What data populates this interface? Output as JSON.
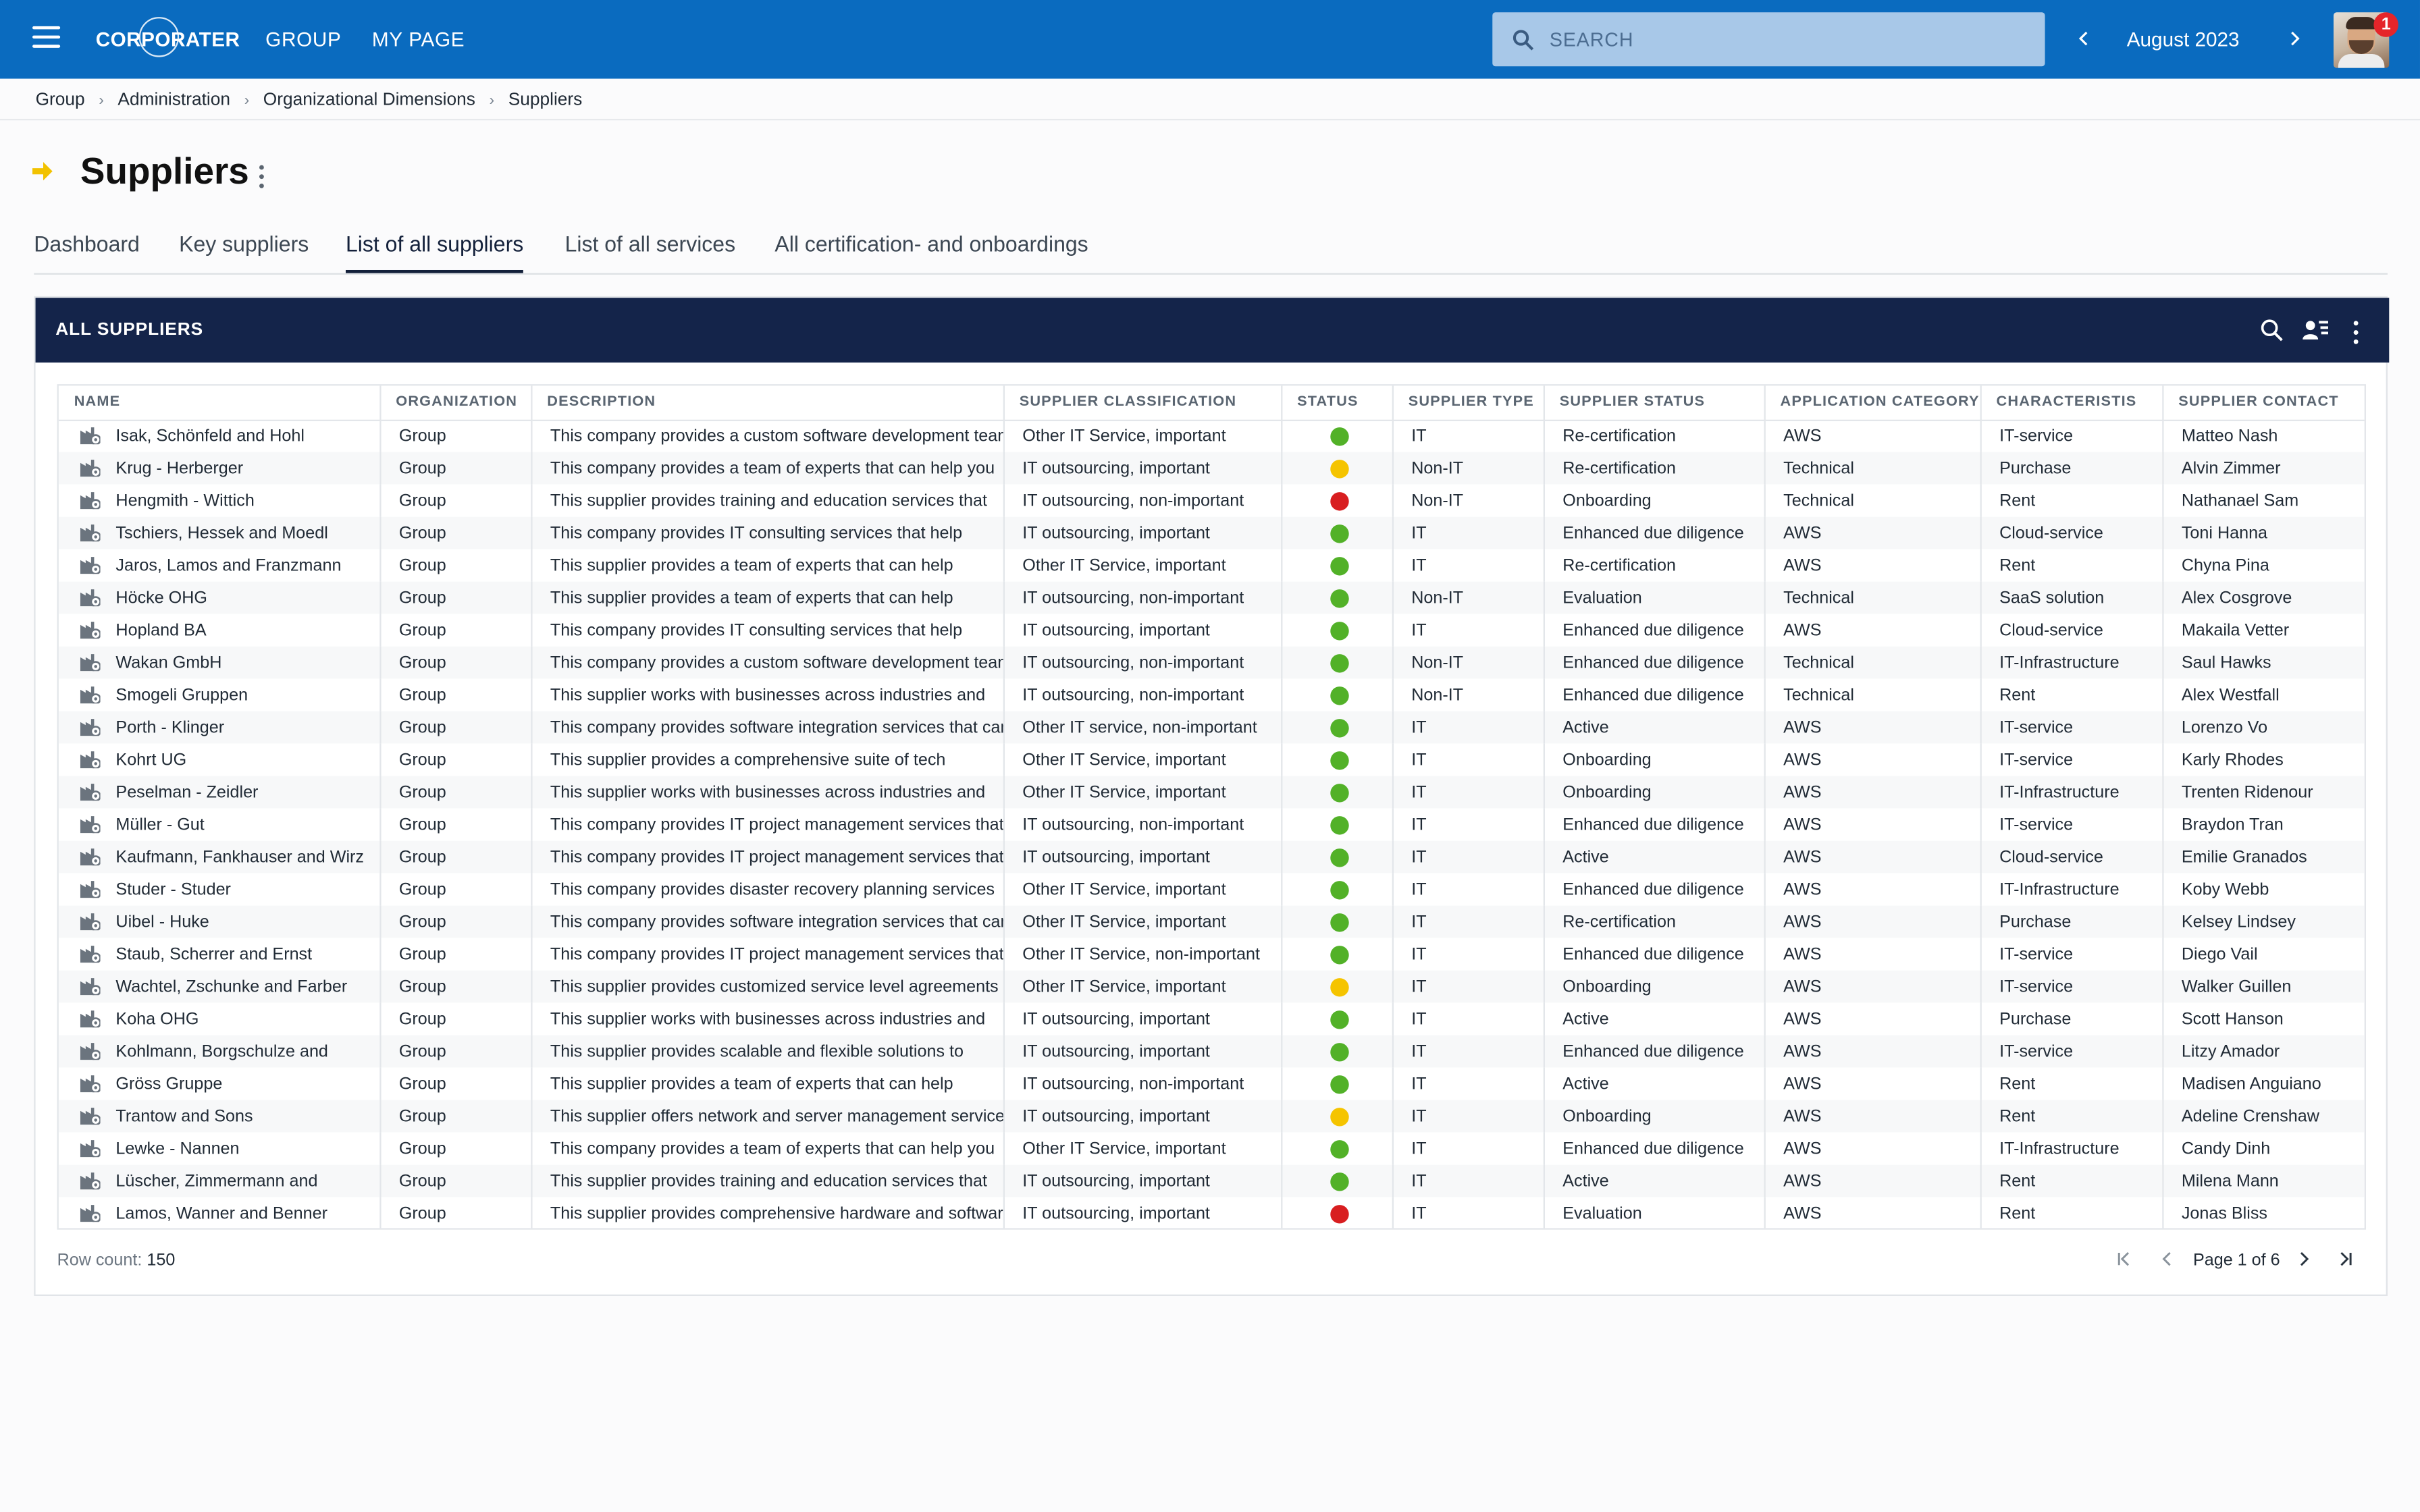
{
  "header": {
    "logo_text": "CORPORATER",
    "nav": [
      "GROUP",
      "MY PAGE"
    ],
    "search_placeholder": "SEARCH",
    "period": "August 2023",
    "notification_count": "1"
  },
  "breadcrumb": [
    "Group",
    "Administration",
    "Organizational Dimensions",
    "Suppliers"
  ],
  "page": {
    "title": "Suppliers",
    "tabs": [
      "Dashboard",
      "Key suppliers",
      "List of all suppliers",
      "List of all services",
      "All certification- and onboardings"
    ],
    "active_tab": "List of all suppliers"
  },
  "panel": {
    "title": "ALL SUPPLIERS",
    "columns": [
      "NAME",
      "ORGANIZATION",
      "DESCRIPTION",
      "SUPPLIER CLASSIFICATION",
      "STATUS",
      "SUPPLIER TYPE",
      "SUPPLIER STATUS",
      "APPLICATION CATEGORY",
      "CHARACTERISTIS",
      "SUPPLIER CONTACT"
    ],
    "rows": [
      {
        "name": "Isak, Schönfeld and Hohl",
        "org": "Group",
        "desc": "This company provides a custom software development team",
        "cls": "Other IT Service, important",
        "status": "green",
        "type": "IT",
        "sstatus": "Re-certification",
        "cat": "AWS",
        "char": "IT-service",
        "contact": "Matteo Nash"
      },
      {
        "name": "Krug - Herberger",
        "org": "Group",
        "desc": "This company provides a team of experts that can help you",
        "cls": "IT outsourcing, important",
        "status": "yellow",
        "type": "Non-IT",
        "sstatus": "Re-certification",
        "cat": "Technical",
        "char": "Purchase",
        "contact": "Alvin Zimmer"
      },
      {
        "name": "Hengmith - Wittich",
        "org": "Group",
        "desc": "This supplier provides training and education services that",
        "cls": "IT outsourcing, non-important",
        "status": "red",
        "type": "Non-IT",
        "sstatus": "Onboarding",
        "cat": "Technical",
        "char": "Rent",
        "contact": "Nathanael Sam"
      },
      {
        "name": "Tschiers, Hessek and Moedl",
        "org": "Group",
        "desc": "This company provides IT consulting services that help",
        "cls": "IT outsourcing, important",
        "status": "green",
        "type": "IT",
        "sstatus": "Enhanced due diligence",
        "cat": "AWS",
        "char": "Cloud-service",
        "contact": "Toni Hanna"
      },
      {
        "name": "Jaros, Lamos and Franzmann",
        "org": "Group",
        "desc": "This supplier provides a team of experts that can help",
        "cls": "Other IT Service, important",
        "status": "green",
        "type": "IT",
        "sstatus": "Re-certification",
        "cat": "AWS",
        "char": "Rent",
        "contact": "Chyna Pina"
      },
      {
        "name": "Höcke OHG",
        "org": "Group",
        "desc": "This supplier provides a team of experts that can help",
        "cls": "IT outsourcing, non-important",
        "status": "green",
        "type": "Non-IT",
        "sstatus": "Evaluation",
        "cat": "Technical",
        "char": "SaaS solution",
        "contact": "Alex Cosgrove"
      },
      {
        "name": "Hopland BA",
        "org": "Group",
        "desc": "This company provides IT consulting services that help",
        "cls": "IT outsourcing, important",
        "status": "green",
        "type": "IT",
        "sstatus": "Enhanced due diligence",
        "cat": "AWS",
        "char": "Cloud-service",
        "contact": "Makaila Vetter"
      },
      {
        "name": "Wakan GmbH",
        "org": "Group",
        "desc": "This company provides a custom software development team",
        "cls": "IT outsourcing, non-important",
        "status": "green",
        "type": "Non-IT",
        "sstatus": "Enhanced due diligence",
        "cat": "Technical",
        "char": "IT-Infrastructure",
        "contact": "Saul Hawks"
      },
      {
        "name": "Smogeli Gruppen",
        "org": "Group",
        "desc": "This supplier works with businesses across industries and",
        "cls": "IT outsourcing, non-important",
        "status": "green",
        "type": "Non-IT",
        "sstatus": "Enhanced due diligence",
        "cat": "Technical",
        "char": "Rent",
        "contact": "Alex Westfall"
      },
      {
        "name": "Porth - Klinger",
        "org": "Group",
        "desc": "This company provides software integration services that can",
        "cls": "Other IT service, non-important",
        "status": "green",
        "type": "IT",
        "sstatus": "Active",
        "cat": "AWS",
        "char": "IT-service",
        "contact": "Lorenzo Vo"
      },
      {
        "name": "Kohrt UG",
        "org": "Group",
        "desc": "This supplier provides a comprehensive suite of tech",
        "cls": "Other IT Service, important",
        "status": "green",
        "type": "IT",
        "sstatus": "Onboarding",
        "cat": "AWS",
        "char": "IT-service",
        "contact": "Karly Rhodes"
      },
      {
        "name": "Peselman - Zeidler",
        "org": "Group",
        "desc": "This supplier works with businesses across industries and",
        "cls": "Other IT Service, important",
        "status": "green",
        "type": "IT",
        "sstatus": "Onboarding",
        "cat": "AWS",
        "char": "IT-Infrastructure",
        "contact": "Trenten Ridenour"
      },
      {
        "name": "Müller - Gut",
        "org": "Group",
        "desc": "This company provides IT project management services that",
        "cls": "IT outsourcing, non-important",
        "status": "green",
        "type": "IT",
        "sstatus": "Enhanced due diligence",
        "cat": "AWS",
        "char": "IT-service",
        "contact": "Braydon Tran"
      },
      {
        "name": "Kaufmann, Fankhauser and Wirz",
        "org": "Group",
        "desc": "This company provides IT project management services that",
        "cls": "IT outsourcing, important",
        "status": "green",
        "type": "IT",
        "sstatus": "Active",
        "cat": "AWS",
        "char": "Cloud-service",
        "contact": "Emilie Granados"
      },
      {
        "name": "Studer - Studer",
        "org": "Group",
        "desc": "This company provides disaster recovery planning services",
        "cls": "Other IT Service, important",
        "status": "green",
        "type": "IT",
        "sstatus": "Enhanced due diligence",
        "cat": "AWS",
        "char": "IT-Infrastructure",
        "contact": "Koby Webb"
      },
      {
        "name": "Uibel - Huke",
        "org": "Group",
        "desc": "This company provides software integration services that can",
        "cls": "Other IT Service, important",
        "status": "green",
        "type": "IT",
        "sstatus": "Re-certification",
        "cat": "AWS",
        "char": "Purchase",
        "contact": "Kelsey Lindsey"
      },
      {
        "name": "Staub, Scherrer and Ernst",
        "org": "Group",
        "desc": "This company provides IT project management services that",
        "cls": "Other IT Service, non-important",
        "status": "green",
        "type": "IT",
        "sstatus": "Enhanced due diligence",
        "cat": "AWS",
        "char": "IT-service",
        "contact": "Diego Vail"
      },
      {
        "name": "Wachtel, Zschunke and Farber",
        "org": "Group",
        "desc": "This supplier provides customized service level agreements to",
        "cls": "Other IT Service, important",
        "status": "yellow",
        "type": "IT",
        "sstatus": "Onboarding",
        "cat": "AWS",
        "char": "IT-service",
        "contact": "Walker Guillen"
      },
      {
        "name": "Koha OHG",
        "org": "Group",
        "desc": "This supplier works with businesses across industries and",
        "cls": "IT outsourcing, important",
        "status": "green",
        "type": "IT",
        "sstatus": "Active",
        "cat": "AWS",
        "char": "Purchase",
        "contact": "Scott Hanson"
      },
      {
        "name": "Kohlmann, Borgschulze and",
        "org": "Group",
        "desc": "This supplier provides scalable and flexible solutions to",
        "cls": "IT outsourcing, important",
        "status": "green",
        "type": "IT",
        "sstatus": "Enhanced due diligence",
        "cat": "AWS",
        "char": "IT-service",
        "contact": "Litzy Amador"
      },
      {
        "name": "Gröss Gruppe",
        "org": "Group",
        "desc": "This supplier provides a team of experts that can help",
        "cls": "IT outsourcing, non-important",
        "status": "green",
        "type": "IT",
        "sstatus": "Active",
        "cat": "AWS",
        "char": "Rent",
        "contact": "Madisen Anguiano"
      },
      {
        "name": "Trantow and Sons",
        "org": "Group",
        "desc": "This supplier offers network and server management services",
        "cls": "IT outsourcing, important",
        "status": "yellow",
        "type": "IT",
        "sstatus": "Onboarding",
        "cat": "AWS",
        "char": "Rent",
        "contact": "Adeline Crenshaw"
      },
      {
        "name": "Lewke - Nannen",
        "org": "Group",
        "desc": "This company provides a team of experts that can help you",
        "cls": "Other IT Service, important",
        "status": "green",
        "type": "IT",
        "sstatus": "Enhanced due diligence",
        "cat": "AWS",
        "char": "IT-Infrastructure",
        "contact": "Candy Dinh"
      },
      {
        "name": "Lüscher, Zimmermann and",
        "org": "Group",
        "desc": "This supplier provides training and education services that",
        "cls": "IT outsourcing, important",
        "status": "green",
        "type": "IT",
        "sstatus": "Active",
        "cat": "AWS",
        "char": "Rent",
        "contact": "Milena Mann"
      },
      {
        "name": "Lamos, Wanner and Benner",
        "org": "Group",
        "desc": "This supplier provides comprehensive hardware and software",
        "cls": "IT outsourcing, important",
        "status": "red",
        "type": "IT",
        "sstatus": "Evaluation",
        "cat": "AWS",
        "char": "Rent",
        "contact": "Jonas Bliss"
      }
    ],
    "row_count_label": "Row count:",
    "row_count": "150",
    "page_label": "Page 1 of 6"
  },
  "colors": {
    "topbar": "#0a6bbf",
    "panel_header": "#14244a",
    "green": "#52b128",
    "yellow": "#f5c400",
    "red": "#d81e20",
    "accent_arrow": "#f2c200"
  }
}
